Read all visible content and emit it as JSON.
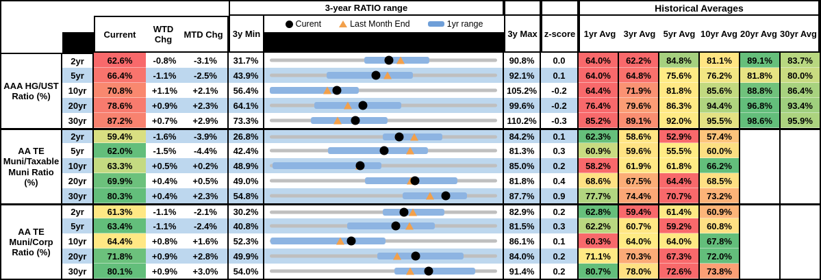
{
  "header": {
    "range_title": "3-year RATIO range",
    "averages_title": "Historical Averages",
    "legend": {
      "current": "Curent",
      "last_month": "Last Month End",
      "range": "1yr range"
    },
    "columns": {
      "current": "Current",
      "wtd": "WTD Chg",
      "mtd": "MTD Chg",
      "min": "3y Min",
      "max": "3y Max",
      "z": "z-score",
      "avgs": [
        "1yr Avg",
        "3yr Avg",
        "5yr Avg",
        "10yr Avg",
        "20yr Avg",
        "30yr Avg"
      ]
    }
  },
  "colors": {
    "row_band": "#BDD7EE",
    "bar_blue": "#8DB4E2",
    "track_gray": "#BFBFBF",
    "marker_orange": "#F2A04B",
    "dot_black": "#000000",
    "scale_red": "#F8696B",
    "scale_yellow": "#FFEB84",
    "scale_green": "#63BE7B"
  },
  "chart_data": {
    "type": "range",
    "title": "3-year RATIO range",
    "legend": [
      "Curent",
      "Last Month End",
      "1yr range"
    ],
    "note": "values in percent; lo1y/hi1y = 1yr range bar, lme = last month end marker",
    "groups": [
      {
        "label_lines": [
          "AAA HG/UST",
          "Ratio (%)"
        ],
        "rows": [
          {
            "tenor": "2yr",
            "current": 62.6,
            "current_bg": "#F8696B",
            "wtd": "-0.8%",
            "mtd": "-3.1%",
            "min3y": 31.7,
            "max3y": 90.8,
            "z": "0.0",
            "lo1y": 56.3,
            "hi1y": 73.2,
            "lme": 65.7,
            "avgs": [
              {
                "v": "64.0%",
                "bg": "#F8696B"
              },
              {
                "v": "62.2%",
                "bg": "#F8696B"
              },
              {
                "v": "84.8%",
                "bg": "#A6D07F"
              },
              {
                "v": "81.1%",
                "bg": "#FFE583"
              },
              {
                "v": "89.1%",
                "bg": "#66BF7B"
              },
              {
                "v": "83.7%",
                "bg": "#B8D780"
              }
            ]
          },
          {
            "tenor": "5yr",
            "current": 66.4,
            "current_bg": "#F8746D",
            "wtd": "-1.1%",
            "mtd": "-2.5%",
            "min3y": 43.9,
            "max3y": 92.1,
            "z": "0.1",
            "lo1y": 56.0,
            "hi1y": 74.3,
            "lme": 68.9,
            "avgs": [
              {
                "v": "64.0%",
                "bg": "#F8696B"
              },
              {
                "v": "64.8%",
                "bg": "#F8716C"
              },
              {
                "v": "75.6%",
                "bg": "#FFEB84"
              },
              {
                "v": "76.2%",
                "bg": "#F2E683"
              },
              {
                "v": "81.8%",
                "bg": "#E7E383"
              },
              {
                "v": "80.0%",
                "bg": "#C9DB81"
              }
            ]
          },
          {
            "tenor": "10yr",
            "current": 70.8,
            "current_bg": "#F9886F",
            "wtd": "+1.1%",
            "mtd": "+2.1%",
            "min3y": 56.4,
            "max3y": 105.2,
            "z": "-0.2",
            "lo1y": 56.4,
            "hi1y": 75.5,
            "lme": 68.7,
            "avgs": [
              {
                "v": "64.4%",
                "bg": "#F8696B"
              },
              {
                "v": "71.9%",
                "bg": "#FA9273"
              },
              {
                "v": "81.8%",
                "bg": "#FFE884"
              },
              {
                "v": "85.6%",
                "bg": "#C2D980"
              },
              {
                "v": "88.8%",
                "bg": "#70C27C"
              },
              {
                "v": "86.4%",
                "bg": "#A8D27F"
              }
            ]
          },
          {
            "tenor": "20yr",
            "current": 78.6,
            "current_bg": "#F87B6E",
            "wtd": "+0.9%",
            "mtd": "+2.3%",
            "min3y": 64.1,
            "max3y": 99.6,
            "z": "-0.2",
            "lo1y": 71.1,
            "hi1y": 84.6,
            "lme": 76.3,
            "avgs": [
              {
                "v": "76.4%",
                "bg": "#F8696B"
              },
              {
                "v": "79.6%",
                "bg": "#FB9D75"
              },
              {
                "v": "86.3%",
                "bg": "#FFE984"
              },
              {
                "v": "94.4%",
                "bg": "#AFD47F"
              },
              {
                "v": "96.8%",
                "bg": "#63BE7B"
              },
              {
                "v": "93.4%",
                "bg": "#9FCF7E"
              }
            ]
          },
          {
            "tenor": "30yr",
            "current": 87.2,
            "current_bg": "#F8826F",
            "wtd": "+0.7%",
            "mtd": "+2.9%",
            "min3y": 73.3,
            "max3y": 110.2,
            "z": "-0.3",
            "lo1y": 80.0,
            "hi1y": 92.4,
            "lme": 84.3,
            "avgs": [
              {
                "v": "85.2%",
                "bg": "#F8696B"
              },
              {
                "v": "89.1%",
                "bg": "#FA8E71"
              },
              {
                "v": "92.0%",
                "bg": "#FFEA84"
              },
              {
                "v": "95.5%",
                "bg": "#E3E183"
              },
              {
                "v": "98.6%",
                "bg": "#63BE7B"
              },
              {
                "v": "95.9%",
                "bg": "#ACD37F"
              }
            ]
          }
        ]
      },
      {
        "label_lines": [
          "AA TE",
          "Muni/Taxable",
          "Muni Ratio",
          "(%)"
        ],
        "rows": [
          {
            "tenor": "2yr",
            "current": 59.4,
            "current_bg": "#D9DF82",
            "wtd": "-1.6%",
            "mtd": "-3.9%",
            "min3y": 26.8,
            "max3y": 84.2,
            "z": "0.1",
            "lo1y": 55.3,
            "hi1y": 70.4,
            "lme": 63.3,
            "avgs": [
              {
                "v": "62.3%",
                "bg": "#66BF7B"
              },
              {
                "v": "58.6%",
                "bg": "#FFE583"
              },
              {
                "v": "52.9%",
                "bg": "#F8696B"
              },
              {
                "v": "57.4%",
                "bg": "#FCC47C"
              },
              null,
              null
            ]
          },
          {
            "tenor": "5yr",
            "current": 62.0,
            "current_bg": "#63BE7B",
            "wtd": "-1.5%",
            "mtd": "-4.4%",
            "min3y": 42.4,
            "max3y": 81.3,
            "z": "0.3",
            "lo1y": 52.4,
            "hi1y": 69.5,
            "lme": 66.4,
            "avgs": [
              {
                "v": "60.9%",
                "bg": "#C9DB81"
              },
              {
                "v": "59.6%",
                "bg": "#FFE383"
              },
              {
                "v": "55.5%",
                "bg": "#FFEB84"
              },
              {
                "v": "60.0%",
                "bg": "#FCDF82"
              },
              null,
              null
            ]
          },
          {
            "tenor": "10yr",
            "current": 63.3,
            "current_bg": "#C4DA81",
            "wtd": "+0.5%",
            "mtd": "+0.2%",
            "min3y": 48.9,
            "max3y": 85.0,
            "z": "0.2",
            "lo1y": 49.3,
            "hi1y": 66.6,
            "lme": 63.1,
            "avgs": [
              {
                "v": "58.2%",
                "bg": "#F8696B"
              },
              {
                "v": "61.9%",
                "bg": "#FFE884"
              },
              {
                "v": "61.8%",
                "bg": "#FFEB84"
              },
              {
                "v": "66.2%",
                "bg": "#63BE7B"
              },
              null,
              null
            ]
          },
          {
            "tenor": "20yr",
            "current": 69.9,
            "current_bg": "#6CC17C",
            "wtd": "+0.4%",
            "mtd": "+0.5%",
            "min3y": 49.0,
            "max3y": 81.8,
            "z": "0.4",
            "lo1y": 62.7,
            "hi1y": 76.1,
            "lme": 69.4,
            "avgs": [
              {
                "v": "68.6%",
                "bg": "#FEE183"
              },
              {
                "v": "67.5%",
                "bg": "#FBAD77"
              },
              {
                "v": "64.4%",
                "bg": "#F8696B"
              },
              {
                "v": "68.5%",
                "bg": "#FEE083"
              },
              null,
              null
            ]
          },
          {
            "tenor": "30yr",
            "current": 80.3,
            "current_bg": "#63BE7B",
            "wtd": "+0.4%",
            "mtd": "+2.3%",
            "min3y": 54.8,
            "max3y": 87.7,
            "z": "0.9",
            "lo1y": 74.0,
            "hi1y": 83.3,
            "lme": 78.0,
            "avgs": [
              {
                "v": "77.7%",
                "bg": "#B2D580"
              },
              {
                "v": "74.4%",
                "bg": "#FBA776"
              },
              {
                "v": "70.7%",
                "bg": "#F8696B"
              },
              {
                "v": "73.2%",
                "bg": "#FCB378"
              },
              null,
              null
            ]
          }
        ]
      },
      {
        "label_lines": [
          "AA TE",
          "Muni/Corp",
          "Ratio (%)"
        ],
        "rows": [
          {
            "tenor": "2yr",
            "current": 61.3,
            "current_bg": "#FFE884",
            "wtd": "-1.1%",
            "mtd": "-2.1%",
            "min3y": 30.2,
            "max3y": 82.9,
            "z": "0.2",
            "lo1y": 56.4,
            "hi1y": 70.6,
            "lme": 63.4,
            "avgs": [
              {
                "v": "62.8%",
                "bg": "#66BF7B"
              },
              {
                "v": "59.4%",
                "bg": "#F8696B"
              },
              {
                "v": "61.4%",
                "bg": "#FFE984"
              },
              {
                "v": "60.9%",
                "bg": "#FCB579"
              },
              null,
              null
            ]
          },
          {
            "tenor": "5yr",
            "current": 63.4,
            "current_bg": "#63BE7B",
            "wtd": "-1.1%",
            "mtd": "-2.4%",
            "min3y": 40.8,
            "max3y": 81.5,
            "z": "0.3",
            "lo1y": 54.6,
            "hi1y": 70.3,
            "lme": 65.8,
            "avgs": [
              {
                "v": "62.2%",
                "bg": "#B9D780"
              },
              {
                "v": "60.7%",
                "bg": "#FFE683"
              },
              {
                "v": "59.2%",
                "bg": "#F8696B"
              },
              {
                "v": "60.8%",
                "bg": "#FEE083"
              },
              null,
              null
            ]
          },
          {
            "tenor": "10yr",
            "current": 64.4,
            "current_bg": "#FFE884",
            "wtd": "+0.8%",
            "mtd": "+1.6%",
            "min3y": 52.3,
            "max3y": 86.1,
            "z": "0.1",
            "lo1y": 52.4,
            "hi1y": 69.5,
            "lme": 62.8,
            "avgs": [
              {
                "v": "60.3%",
                "bg": "#F8696B"
              },
              {
                "v": "64.0%",
                "bg": "#FFEB84"
              },
              {
                "v": "64.0%",
                "bg": "#FEE983"
              },
              {
                "v": "67.8%",
                "bg": "#63BE7B"
              },
              null,
              null
            ]
          },
          {
            "tenor": "20yr",
            "current": 71.8,
            "current_bg": "#6CC17C",
            "wtd": "+0.9%",
            "mtd": "+2.8%",
            "min3y": 49.9,
            "max3y": 84.0,
            "z": "0.2",
            "lo1y": 66.0,
            "hi1y": 79.0,
            "lme": 69.0,
            "avgs": [
              {
                "v": "71.1%",
                "bg": "#FFE984"
              },
              {
                "v": "70.3%",
                "bg": "#FBAB77"
              },
              {
                "v": "67.3%",
                "bg": "#F8696B"
              },
              {
                "v": "72.0%",
                "bg": "#63BE7B"
              },
              null,
              null
            ]
          },
          {
            "tenor": "30yr",
            "current": 80.1,
            "current_bg": "#63BE7B",
            "wtd": "+0.9%",
            "mtd": "+3.0%",
            "min3y": 54.0,
            "max3y": 91.4,
            "z": "0.2",
            "lo1y": 74.5,
            "hi1y": 87.8,
            "lme": 77.1,
            "avgs": [
              {
                "v": "80.7%",
                "bg": "#63BE7B"
              },
              {
                "v": "78.0%",
                "bg": "#FEE083"
              },
              {
                "v": "72.6%",
                "bg": "#F8696B"
              },
              {
                "v": "73.8%",
                "bg": "#FB9F75"
              },
              null,
              null
            ]
          }
        ]
      }
    ]
  }
}
